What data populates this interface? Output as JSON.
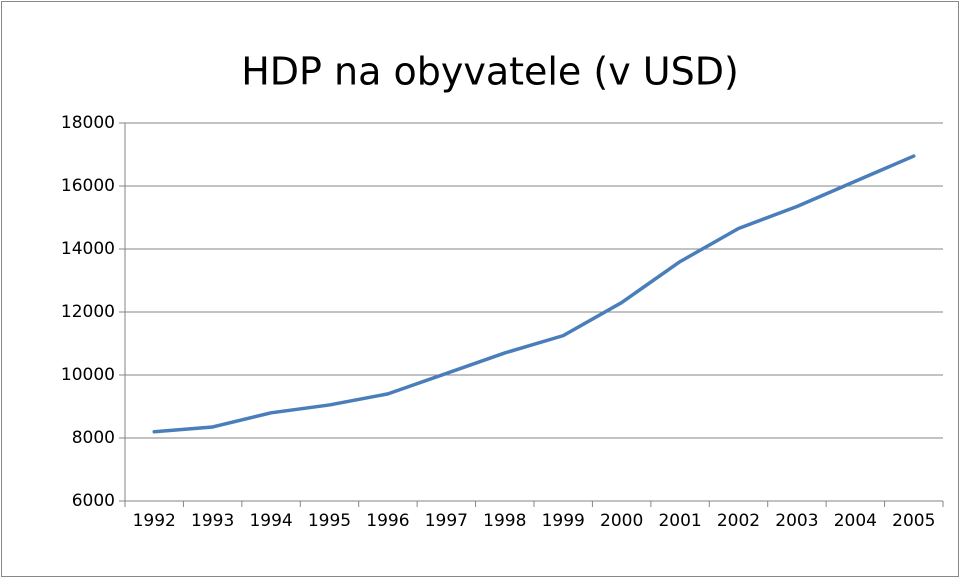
{
  "chart_data": {
    "type": "line",
    "title": "HDP na obyvatele (v USD)",
    "categories": [
      "1992",
      "1993",
      "1994",
      "1995",
      "1996",
      "1997",
      "1998",
      "1999",
      "2000",
      "2001",
      "2002",
      "2003",
      "2004",
      "2005"
    ],
    "series": [
      {
        "name": "HDP",
        "color": "#4a7ebb",
        "values": [
          8200,
          8350,
          8800,
          9050,
          9400,
          10050,
          10700,
          11250,
          12300,
          13600,
          14650,
          15350,
          16150,
          16950
        ]
      }
    ],
    "ylim": [
      6000,
      18000
    ],
    "yticks": [
      6000,
      8000,
      10000,
      12000,
      14000,
      16000,
      18000
    ],
    "grid": true
  }
}
